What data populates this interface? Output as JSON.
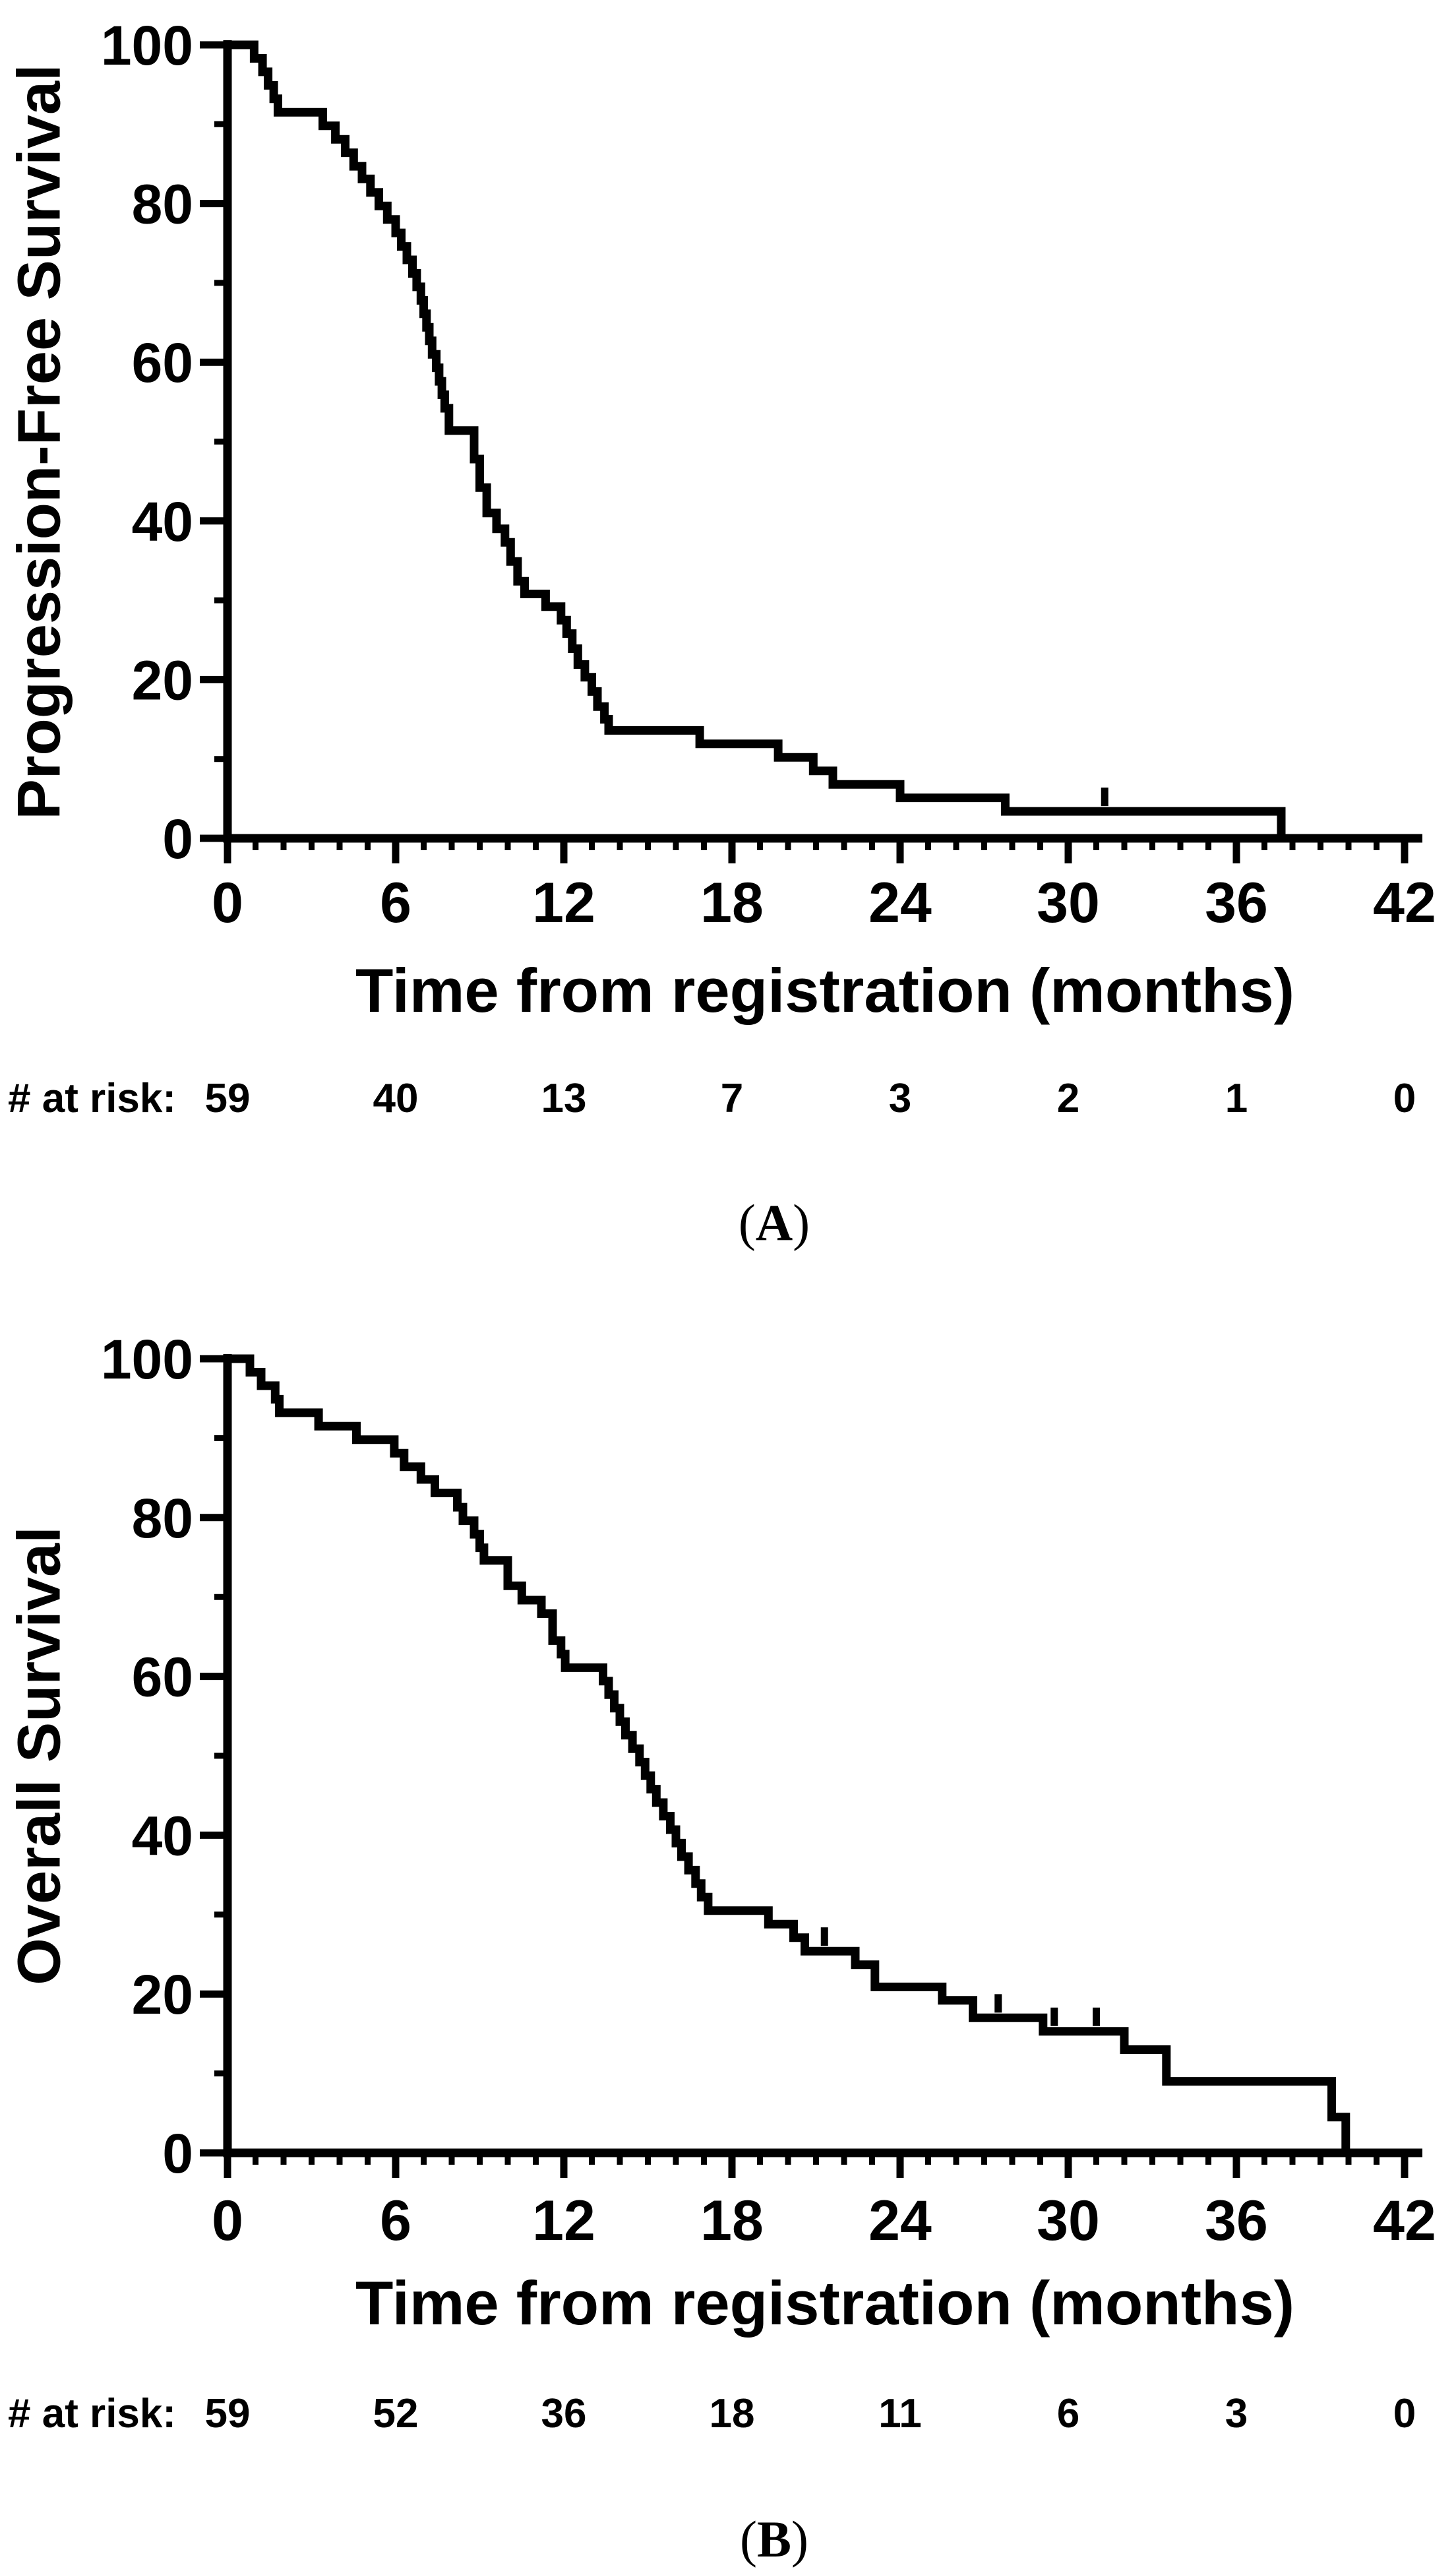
{
  "figure": {
    "background_color": "#ffffff",
    "ink_color": "#000000",
    "panels": [
      {
        "letter_open": "(",
        "letter": "A",
        "letter_close": ")"
      },
      {
        "letter_open": "(",
        "letter": "B",
        "letter_close": ")"
      }
    ]
  },
  "chart_data": [
    {
      "type": "line",
      "subtype": "kaplan_meier_step",
      "panel_label": "(A)",
      "title": "",
      "xlabel": "Time from registration (months)",
      "ylabel": "Progression-Free Survival",
      "xlim": [
        0,
        42
      ],
      "ylim": [
        0,
        100
      ],
      "x_ticks": [
        0,
        6,
        12,
        18,
        24,
        30,
        36,
        42
      ],
      "x_minor_tick_interval_months": 1,
      "y_ticks": [
        0,
        20,
        40,
        60,
        80,
        100
      ],
      "y_minor_ticks": [
        10,
        30,
        50,
        70,
        90
      ],
      "grid": false,
      "legend": null,
      "line_color": "#000000",
      "steps_time_vs_percent": [
        [
          0,
          100
        ],
        [
          0.95,
          98.3
        ],
        [
          1.25,
          96.6
        ],
        [
          1.45,
          94.9
        ],
        [
          1.65,
          93.2
        ],
        [
          1.8,
          91.5
        ],
        [
          3.4,
          89.8
        ],
        [
          3.85,
          88.1
        ],
        [
          4.2,
          86.4
        ],
        [
          4.5,
          84.7
        ],
        [
          4.8,
          83.1
        ],
        [
          5.1,
          81.4
        ],
        [
          5.4,
          79.7
        ],
        [
          5.7,
          78.0
        ],
        [
          6.0,
          76.3
        ],
        [
          6.2,
          74.6
        ],
        [
          6.4,
          72.9
        ],
        [
          6.6,
          71.2
        ],
        [
          6.75,
          69.5
        ],
        [
          6.9,
          67.8
        ],
        [
          7.0,
          66.1
        ],
        [
          7.1,
          64.4
        ],
        [
          7.2,
          62.7
        ],
        [
          7.3,
          61.0
        ],
        [
          7.45,
          59.3
        ],
        [
          7.55,
          57.6
        ],
        [
          7.65,
          55.9
        ],
        [
          7.75,
          54.2
        ],
        [
          7.9,
          51.4
        ],
        [
          8.8,
          47.8
        ],
        [
          9.0,
          44.2
        ],
        [
          9.25,
          41.0
        ],
        [
          9.6,
          39.0
        ],
        [
          9.9,
          37.3
        ],
        [
          10.1,
          34.9
        ],
        [
          10.35,
          32.4
        ],
        [
          10.6,
          30.8
        ],
        [
          11.35,
          29.2
        ],
        [
          11.9,
          27.5
        ],
        [
          12.1,
          25.8
        ],
        [
          12.3,
          23.9
        ],
        [
          12.5,
          21.9
        ],
        [
          12.75,
          20.3
        ],
        [
          13.0,
          18.5
        ],
        [
          13.2,
          16.6
        ],
        [
          13.45,
          15.0
        ],
        [
          13.6,
          13.6
        ],
        [
          16.85,
          11.9
        ],
        [
          19.65,
          10.2
        ],
        [
          20.9,
          8.5
        ],
        [
          21.6,
          6.8
        ],
        [
          24.0,
          5.1
        ],
        [
          27.75,
          3.4
        ],
        [
          37.6,
          0
        ]
      ],
      "censor_marks_time_vs_percent": [
        [
          31.3,
          3.4
        ]
      ],
      "number_at_risk": {
        "label": "# at risk:",
        "times": [
          0,
          6,
          12,
          18,
          24,
          30,
          36,
          42
        ],
        "counts": [
          "59",
          "40",
          "13",
          "7",
          "3",
          "2",
          "1",
          "0"
        ]
      }
    },
    {
      "type": "line",
      "subtype": "kaplan_meier_step",
      "panel_label": "(B)",
      "title": "",
      "xlabel": "Time from registration (months)",
      "ylabel": "Overall Survival",
      "xlim": [
        0,
        42
      ],
      "ylim": [
        0,
        100
      ],
      "x_ticks": [
        0,
        6,
        12,
        18,
        24,
        30,
        36,
        42
      ],
      "x_minor_tick_interval_months": 1,
      "y_ticks": [
        0,
        20,
        40,
        60,
        80,
        100
      ],
      "y_minor_ticks": [
        10,
        30,
        50,
        70,
        90
      ],
      "grid": false,
      "legend": null,
      "line_color": "#000000",
      "steps_time_vs_percent": [
        [
          0,
          100
        ],
        [
          0.8,
          98.3
        ],
        [
          1.2,
          96.6
        ],
        [
          1.7,
          94.9
        ],
        [
          1.85,
          93.2
        ],
        [
          3.25,
          91.5
        ],
        [
          4.6,
          89.8
        ],
        [
          5.95,
          88.1
        ],
        [
          6.3,
          86.4
        ],
        [
          6.9,
          84.8
        ],
        [
          7.4,
          83.1
        ],
        [
          8.2,
          81.3
        ],
        [
          8.4,
          79.6
        ],
        [
          8.8,
          77.9
        ],
        [
          9.0,
          76.2
        ],
        [
          9.15,
          74.6
        ],
        [
          10.0,
          71.4
        ],
        [
          10.5,
          69.6
        ],
        [
          11.2,
          67.9
        ],
        [
          11.6,
          64.5
        ],
        [
          11.9,
          62.8
        ],
        [
          12.05,
          61.1
        ],
        [
          13.4,
          59.4
        ],
        [
          13.6,
          57.7
        ],
        [
          13.8,
          56.0
        ],
        [
          14.0,
          54.3
        ],
        [
          14.2,
          52.6
        ],
        [
          14.45,
          50.9
        ],
        [
          14.7,
          49.2
        ],
        [
          14.9,
          47.5
        ],
        [
          15.1,
          45.8
        ],
        [
          15.3,
          44.1
        ],
        [
          15.55,
          42.4
        ],
        [
          15.8,
          40.7
        ],
        [
          16.0,
          39.0
        ],
        [
          16.2,
          37.3
        ],
        [
          16.45,
          35.6
        ],
        [
          16.7,
          33.9
        ],
        [
          16.9,
          32.2
        ],
        [
          17.15,
          30.5
        ],
        [
          19.3,
          28.8
        ],
        [
          20.2,
          27.1
        ],
        [
          20.6,
          25.4
        ],
        [
          22.4,
          23.7
        ],
        [
          23.1,
          20.9
        ],
        [
          25.5,
          19.2
        ],
        [
          26.6,
          17.0
        ],
        [
          29.1,
          15.3
        ],
        [
          32.0,
          13.0
        ],
        [
          33.5,
          9.0
        ],
        [
          39.4,
          4.5
        ],
        [
          39.9,
          0
        ]
      ],
      "censor_marks_time_vs_percent": [
        [
          21.3,
          25.4
        ],
        [
          27.5,
          17.0
        ],
        [
          29.5,
          15.3
        ],
        [
          31.0,
          15.3
        ]
      ],
      "number_at_risk": {
        "label": "# at risk:",
        "times": [
          0,
          6,
          12,
          18,
          24,
          30,
          36,
          42
        ],
        "counts": [
          "59",
          "52",
          "36",
          "18",
          "11",
          "6",
          "3",
          "0"
        ]
      }
    }
  ]
}
